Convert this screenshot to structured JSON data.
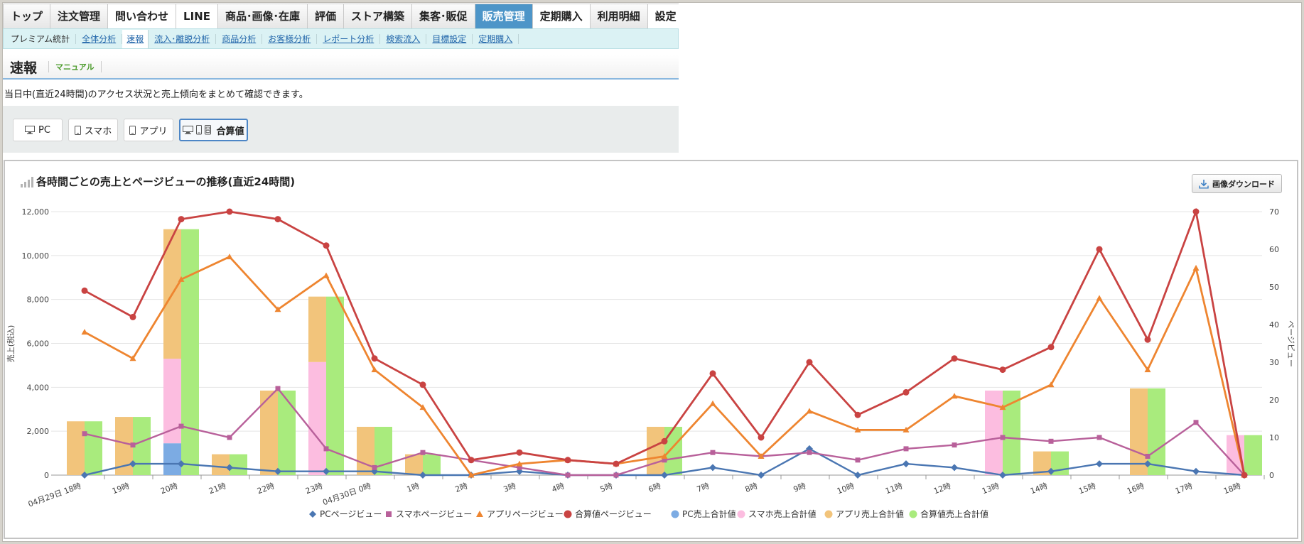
{
  "nav": {
    "tabs": [
      {
        "label": "トップ",
        "style": "normal"
      },
      {
        "label": "注文管理",
        "style": "normal"
      },
      {
        "label": "問い合わせ",
        "style": "white"
      },
      {
        "label": "LINE",
        "style": "white"
      },
      {
        "label": "商品･画像･在庫",
        "style": "normal"
      },
      {
        "label": "評価",
        "style": "normal"
      },
      {
        "label": "ストア構築",
        "style": "normal"
      },
      {
        "label": "集客･販促",
        "style": "normal"
      },
      {
        "label": "販売管理",
        "style": "active"
      },
      {
        "label": "定期購入",
        "style": "white"
      },
      {
        "label": "利用明細",
        "style": "normal"
      },
      {
        "label": "設定",
        "style": "white"
      }
    ],
    "subtabs": [
      {
        "label": "プレミアム統計",
        "style": "first"
      },
      {
        "label": "全体分析",
        "style": "link"
      },
      {
        "label": "速報",
        "style": "current"
      },
      {
        "label": "流入･離脱分析",
        "style": "link"
      },
      {
        "label": "商品分析",
        "style": "link"
      },
      {
        "label": "お客様分析",
        "style": "link"
      },
      {
        "label": "レポート分析",
        "style": "link"
      },
      {
        "label": "検索流入",
        "style": "link"
      },
      {
        "label": "目標設定",
        "style": "link"
      },
      {
        "label": "定期購入",
        "style": "link"
      }
    ]
  },
  "page": {
    "title": "速報",
    "manual": "マニュアル",
    "description": "当日中(直近24時間)のアクセス状況と売上傾向をまとめて確認できます。"
  },
  "device_buttons": [
    {
      "label": "PC",
      "icon": "monitor-icon",
      "active": false
    },
    {
      "label": "スマホ",
      "icon": "smartphone-icon",
      "active": false
    },
    {
      "label": "アプリ",
      "icon": "app-phone-icon",
      "active": false
    },
    {
      "label": "合算値",
      "icon": "combined-devices-icon",
      "active": true
    }
  ],
  "chart_panel": {
    "download_label": "画像ダウンロード"
  },
  "chart_data": {
    "type": "bar",
    "title": "各時間ごとの売上とページビューの推移(直近24時間)",
    "ylabel_left": "売上(税込)",
    "ylabel_right": "ページビュー",
    "ylim_left": [
      0,
      12000
    ],
    "ylim_right": [
      0,
      70
    ],
    "yticks_left": [
      "0",
      "2,000",
      "4,000",
      "6,000",
      "8,000",
      "10,000",
      "12,000"
    ],
    "yticks_right": [
      "0",
      "10",
      "20",
      "30",
      "40",
      "50",
      "60",
      "70"
    ],
    "categories": [
      "04月29日 18時",
      "19時",
      "20時",
      "21時",
      "22時",
      "23時",
      "04月30日 0時",
      "1時",
      "2時",
      "3時",
      "4時",
      "5時",
      "6時",
      "7時",
      "8時",
      "9時",
      "10時",
      "11時",
      "12時",
      "13時",
      "14時",
      "15時",
      "16時",
      "17時",
      "18時"
    ],
    "bar_series": [
      {
        "name": "PC売上合計値",
        "color": "#7cabe3",
        "values": [
          0,
          0,
          1450,
          0,
          0,
          0,
          0,
          0,
          0,
          0,
          0,
          0,
          0,
          0,
          0,
          0,
          0,
          0,
          0,
          0,
          0,
          0,
          0,
          0,
          0
        ]
      },
      {
        "name": "スマホ売上合計値",
        "color": "#fcbde0",
        "values": [
          0,
          0,
          3850,
          0,
          0,
          5150,
          0,
          0,
          0,
          0,
          0,
          0,
          0,
          0,
          0,
          0,
          0,
          0,
          0,
          3850,
          0,
          0,
          0,
          0,
          1820
        ]
      },
      {
        "name": "アプリ売上合計値",
        "color": "#f2c47b",
        "values": [
          2450,
          2650,
          5900,
          950,
          3850,
          2980,
          2200,
          950,
          0,
          0,
          0,
          0,
          2200,
          0,
          0,
          0,
          0,
          0,
          0,
          0,
          1080,
          0,
          3950,
          0,
          0
        ]
      },
      {
        "name": "合算値売上合計値",
        "color": "#a9eb7d",
        "values": [
          2450,
          2650,
          11200,
          950,
          3850,
          8130,
          2200,
          950,
          0,
          0,
          0,
          0,
          2200,
          0,
          0,
          0,
          0,
          0,
          0,
          3850,
          1080,
          0,
          3950,
          0,
          1820
        ]
      }
    ],
    "line_series": [
      {
        "name": "PCページビュー",
        "color": "#4a76b2",
        "marker": "diamond",
        "values": [
          0,
          3,
          3,
          2,
          1,
          1,
          1,
          0,
          0,
          1,
          0,
          0,
          0,
          2,
          0,
          7,
          0,
          3,
          2,
          0,
          1,
          3,
          3,
          1,
          0
        ]
      },
      {
        "name": "スマホページビュー",
        "color": "#b8609a",
        "marker": "square",
        "values": [
          11,
          8,
          13,
          10,
          23,
          7,
          2,
          6,
          4,
          2,
          0,
          0,
          4,
          6,
          5,
          6,
          4,
          7,
          8,
          10,
          9,
          10,
          5,
          14,
          0
        ]
      },
      {
        "name": "アプリページビュー",
        "color": "#ee8530",
        "marker": "triangle",
        "values": [
          38,
          31,
          52,
          58,
          44,
          53,
          28,
          18,
          0,
          3,
          4,
          3,
          5,
          19,
          5,
          17,
          12,
          12,
          21,
          18,
          24,
          47,
          28,
          55,
          0
        ]
      },
      {
        "name": "合算値ページビュー",
        "color": "#c94342",
        "marker": "circle",
        "values": [
          49,
          42,
          68,
          70,
          68,
          61,
          31,
          24,
          4,
          6,
          4,
          3,
          9,
          27,
          10,
          30,
          16,
          22,
          31,
          28,
          34,
          60,
          36,
          70,
          0
        ]
      }
    ],
    "legend_order": [
      "PCページビュー",
      "スマホページビュー",
      "アプリページビュー",
      "合算値ページビュー",
      "PC売上合計値",
      "スマホ売上合計値",
      "アプリ売上合計値",
      "合算値売上合計値"
    ],
    "legend_position": "bottom-center",
    "grid": true
  }
}
